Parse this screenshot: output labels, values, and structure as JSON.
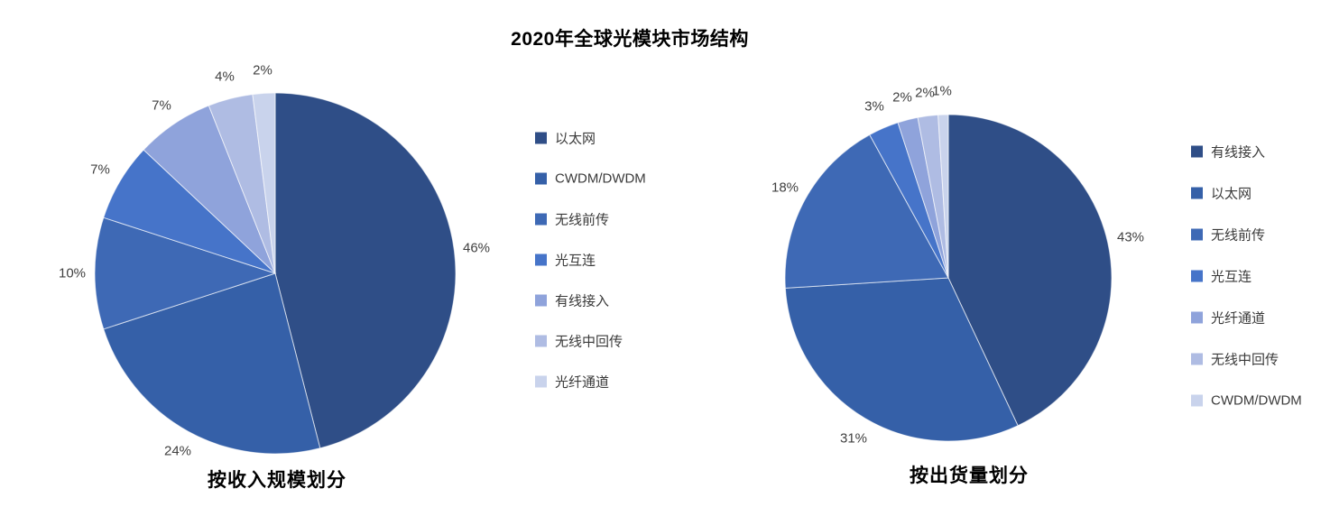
{
  "title": "2020年全球光模块市场结构",
  "chart_data": [
    {
      "type": "pie",
      "title": "按收入规模划分",
      "legend_position": "right",
      "start_angle_deg": 0,
      "direction": "clockwise",
      "unit": "percent",
      "labels": [
        "以太网",
        "CWDM/DWDM",
        "无线前传",
        "光互连",
        "有线接入",
        "无线中回传",
        "光纤通道"
      ],
      "values": [
        46,
        24,
        10,
        7,
        7,
        4,
        2
      ],
      "percent_labels": [
        "46%",
        "24%",
        "10%",
        "7%",
        "7%",
        "4%",
        "2%"
      ],
      "colors": [
        "#2F4E87",
        "#3560A8",
        "#3E69B5",
        "#4674C9",
        "#8FA3DB",
        "#AFBCE3",
        "#C9D3EC"
      ]
    },
    {
      "type": "pie",
      "title": "按出货量划分",
      "legend_position": "right",
      "start_angle_deg": 0,
      "direction": "clockwise",
      "unit": "percent",
      "labels": [
        "有线接入",
        "以太网",
        "无线前传",
        "光互连",
        "光纤通道",
        "无线中回传",
        "CWDM/DWDM"
      ],
      "values": [
        43,
        31,
        18,
        3,
        2,
        2,
        1
      ],
      "percent_labels": [
        "43%",
        "31%",
        "18%",
        "3%",
        "2%",
        "2%",
        "1%"
      ],
      "colors": [
        "#2F4E87",
        "#3560A8",
        "#3E69B5",
        "#4674C9",
        "#8FA3DB",
        "#AFBCE3",
        "#C9D3EC"
      ]
    }
  ]
}
